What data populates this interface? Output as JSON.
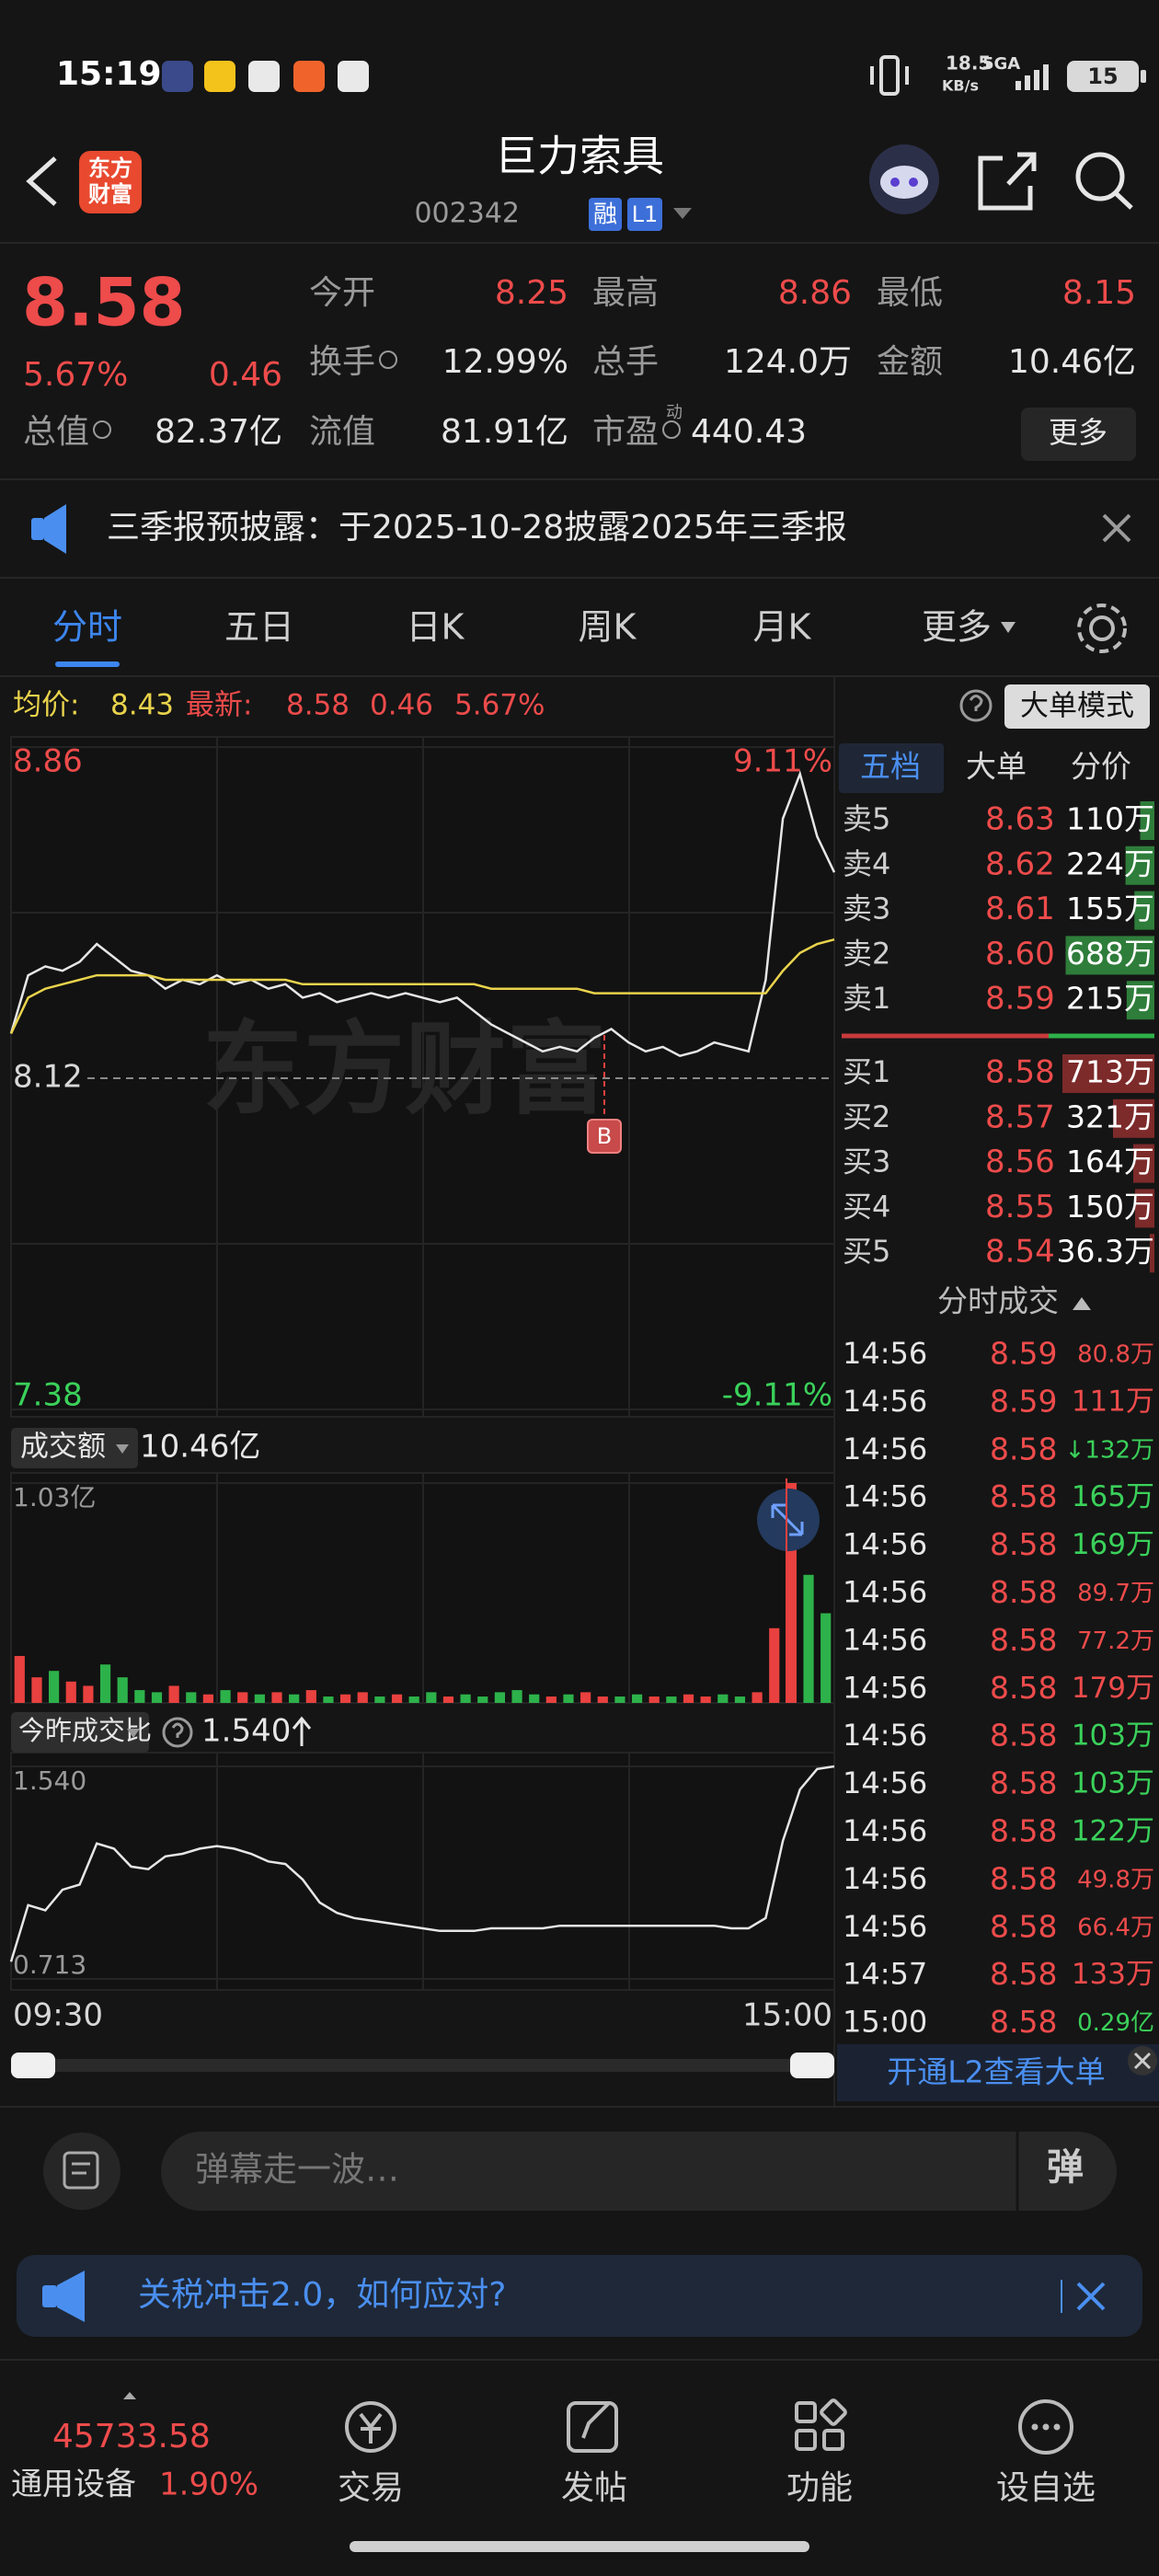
{
  "status_bar": {
    "time": "15:19",
    "speed": "18.5",
    "speed_unit": "KB/s",
    "network": "5GA",
    "battery": "15"
  },
  "header": {
    "logo": [
      "东方",
      "财富"
    ],
    "title": "巨力索具",
    "code": "002342",
    "badges": [
      "融",
      "L1"
    ]
  },
  "quote": {
    "price": "8.58",
    "change_pct": "5.67%",
    "change": "0.46",
    "stats": [
      {
        "label": "今开",
        "value": "8.25"
      },
      {
        "label": "最高",
        "value": "8.86"
      },
      {
        "label": "最低",
        "value": "8.15"
      },
      {
        "label": "换手",
        "value": "12.99%"
      },
      {
        "label": "总手",
        "value": "124.0万"
      },
      {
        "label": "金额",
        "value": "10.46亿"
      },
      {
        "label": "总值",
        "value": "82.37亿"
      },
      {
        "label": "流值",
        "value": "81.91亿"
      },
      {
        "label": "市盈",
        "value": "440.43",
        "superscript": "动"
      }
    ],
    "more_button": "更多"
  },
  "notice": "三季报预披露：于2025-10-28披露2025年三季报",
  "tabs": [
    "分时",
    "五日",
    "日K",
    "周K",
    "月K",
    "更多"
  ],
  "info_line": {
    "avg_label": "均价:",
    "avg": "8.43",
    "latest_label": "最新:",
    "latest": "8.58",
    "change": "0.46",
    "change_pct": "5.67%",
    "mode_button": "大单模式"
  },
  "watermark": "东方财富",
  "chart_data": [
    {
      "type": "line",
      "ylim": [
        7.38,
        8.86
      ],
      "yticks": [
        8.86,
        8.12,
        7.38
      ],
      "y2lim": [
        -9.11,
        9.11
      ],
      "y2ticks": [
        {
          "value": 9.11,
          "label": "9.11%"
        },
        {
          "value": -9.11,
          "label": "-9.11%"
        }
      ],
      "series": [
        {
          "color": "#e6e6e6",
          "values": [
            8.22,
            8.35,
            8.37,
            8.36,
            8.38,
            8.42,
            8.39,
            8.36,
            8.35,
            8.32,
            8.34,
            8.33,
            8.35,
            8.33,
            8.34,
            8.32,
            8.33,
            8.3,
            8.31,
            8.29,
            8.3,
            8.31,
            8.3,
            8.31,
            8.3,
            8.29,
            8.3,
            8.27,
            8.24,
            8.22,
            8.2,
            8.18,
            8.19,
            8.18,
            8.21,
            8.23,
            8.2,
            8.18,
            8.19,
            8.17,
            8.18,
            8.2,
            8.19,
            8.18,
            8.34,
            8.7,
            8.8,
            8.66,
            8.58
          ]
        },
        {
          "color": "#e9d34c",
          "values": [
            8.22,
            8.3,
            8.32,
            8.33,
            8.34,
            8.35,
            8.35,
            8.35,
            8.35,
            8.34,
            8.34,
            8.34,
            8.34,
            8.34,
            8.34,
            8.34,
            8.34,
            8.33,
            8.33,
            8.33,
            8.33,
            8.33,
            8.33,
            8.33,
            8.33,
            8.33,
            8.33,
            8.33,
            8.32,
            8.32,
            8.32,
            8.32,
            8.32,
            8.32,
            8.31,
            8.31,
            8.31,
            8.31,
            8.31,
            8.31,
            8.31,
            8.31,
            8.31,
            8.31,
            8.31,
            8.36,
            8.4,
            8.42,
            8.43
          ]
        }
      ]
    },
    {
      "type": "bar",
      "label": "成交额",
      "total": "10.46亿",
      "ylim": [
        0,
        1.03
      ],
      "yticks": [
        {
          "value": 1.03,
          "label": "1.03亿"
        }
      ],
      "colors": {
        "up": "#e8413f",
        "down": "#2db14a"
      },
      "values": [
        0.22,
        0.12,
        0.15,
        0.1,
        0.08,
        0.18,
        0.12,
        0.06,
        0.05,
        0.08,
        0.05,
        0.04,
        0.06,
        0.05,
        0.04,
        0.05,
        0.04,
        0.06,
        0.03,
        0.04,
        0.05,
        0.03,
        0.04,
        0.03,
        0.05,
        0.03,
        0.04,
        0.03,
        0.05,
        0.06,
        0.04,
        0.03,
        0.04,
        0.05,
        0.03,
        0.03,
        0.04,
        0.03,
        0.03,
        0.04,
        0.03,
        0.04,
        0.03,
        0.05,
        0.35,
        1.03,
        0.6,
        0.42
      ]
    },
    {
      "type": "line",
      "label": "今昨成交比",
      "current": "1.540",
      "ylim": [
        0.713,
        1.54
      ],
      "yticks": [
        {
          "value": 1.54,
          "label": "1.540"
        },
        0.713
      ],
      "series": [
        {
          "color": "#e6e6e6",
          "values": [
            0.78,
            1.0,
            0.98,
            1.06,
            1.08,
            1.24,
            1.22,
            1.15,
            1.14,
            1.19,
            1.2,
            1.22,
            1.23,
            1.22,
            1.2,
            1.17,
            1.16,
            1.1,
            1.01,
            0.97,
            0.95,
            0.94,
            0.93,
            0.92,
            0.91,
            0.9,
            0.9,
            0.9,
            0.91,
            0.91,
            0.91,
            0.91,
            0.92,
            0.92,
            0.92,
            0.92,
            0.92,
            0.92,
            0.92,
            0.92,
            0.92,
            0.92,
            0.91,
            0.91,
            0.95,
            1.25,
            1.45,
            1.53,
            1.54
          ]
        }
      ]
    }
  ],
  "time_axis": [
    "09:30",
    "15:00"
  ],
  "annotation": "B",
  "order_book": {
    "tabs": [
      "五档",
      "大单",
      "分价"
    ],
    "sell": [
      {
        "label": "卖5",
        "price": "8.63",
        "volume": 110,
        "volume_label": "110万"
      },
      {
        "label": "卖4",
        "price": "8.62",
        "volume": 224,
        "volume_label": "224万"
      },
      {
        "label": "卖3",
        "price": "8.61",
        "volume": 155,
        "volume_label": "155万"
      },
      {
        "label": "卖2",
        "price": "8.60",
        "volume": 688,
        "volume_label": "688万"
      },
      {
        "label": "卖1",
        "price": "8.59",
        "volume": 215,
        "volume_label": "215万"
      }
    ],
    "buy": [
      {
        "label": "买1",
        "price": "8.58",
        "volume": 713,
        "volume_label": "713万"
      },
      {
        "label": "买2",
        "price": "8.57",
        "volume": 321,
        "volume_label": "321万"
      },
      {
        "label": "买3",
        "price": "8.56",
        "volume": 164,
        "volume_label": "164万"
      },
      {
        "label": "买4",
        "price": "8.55",
        "volume": 150,
        "volume_label": "150万"
      },
      {
        "label": "买5",
        "price": "8.54",
        "volume": 36.3,
        "volume_label": "36.3万"
      }
    ]
  },
  "trades": {
    "title": "分时成交",
    "rows": [
      {
        "time": "14:56",
        "price": "8.59",
        "volume": "80.8万",
        "color": "#ee4b4b"
      },
      {
        "time": "14:56",
        "price": "8.59",
        "volume": "111万",
        "color": "#ee4b4b"
      },
      {
        "time": "14:56",
        "price": "8.58",
        "volume": "↓132万",
        "color": "#3ad15a"
      },
      {
        "time": "14:56",
        "price": "8.58",
        "volume": "165万",
        "color": "#3ad15a"
      },
      {
        "time": "14:56",
        "price": "8.58",
        "volume": "169万",
        "color": "#3ad15a"
      },
      {
        "time": "14:56",
        "price": "8.58",
        "volume": "89.7万",
        "color": "#ee4b4b"
      },
      {
        "time": "14:56",
        "price": "8.58",
        "volume": "77.2万",
        "color": "#ee4b4b"
      },
      {
        "time": "14:56",
        "price": "8.58",
        "volume": "179万",
        "color": "#ee4b4b"
      },
      {
        "time": "14:56",
        "price": "8.58",
        "volume": "103万",
        "color": "#3ad15a"
      },
      {
        "time": "14:56",
        "price": "8.58",
        "volume": "103万",
        "color": "#3ad15a"
      },
      {
        "time": "14:56",
        "price": "8.58",
        "volume": "122万",
        "color": "#3ad15a"
      },
      {
        "time": "14:56",
        "price": "8.58",
        "volume": "49.8万",
        "color": "#ee4b4b"
      },
      {
        "time": "14:56",
        "price": "8.58",
        "volume": "66.4万",
        "color": "#ee4b4b"
      },
      {
        "time": "14:57",
        "price": "8.58",
        "volume": "133万",
        "color": "#ee4b4b"
      },
      {
        "time": "15:00",
        "price": "8.58",
        "volume": "0.29亿",
        "color": "#3ad15a"
      }
    ]
  },
  "l2_banner": "开通L2查看大单",
  "comment_placeholder": "弹幕走一波…",
  "comment_button": "弹",
  "promo": "关税冲击2.0，如何应对?",
  "bottom_nav": {
    "index_value": "45733.58",
    "index_name": "通用设备",
    "index_change": "1.90%",
    "items": [
      "交易",
      "发帖",
      "功能",
      "设自选"
    ]
  }
}
